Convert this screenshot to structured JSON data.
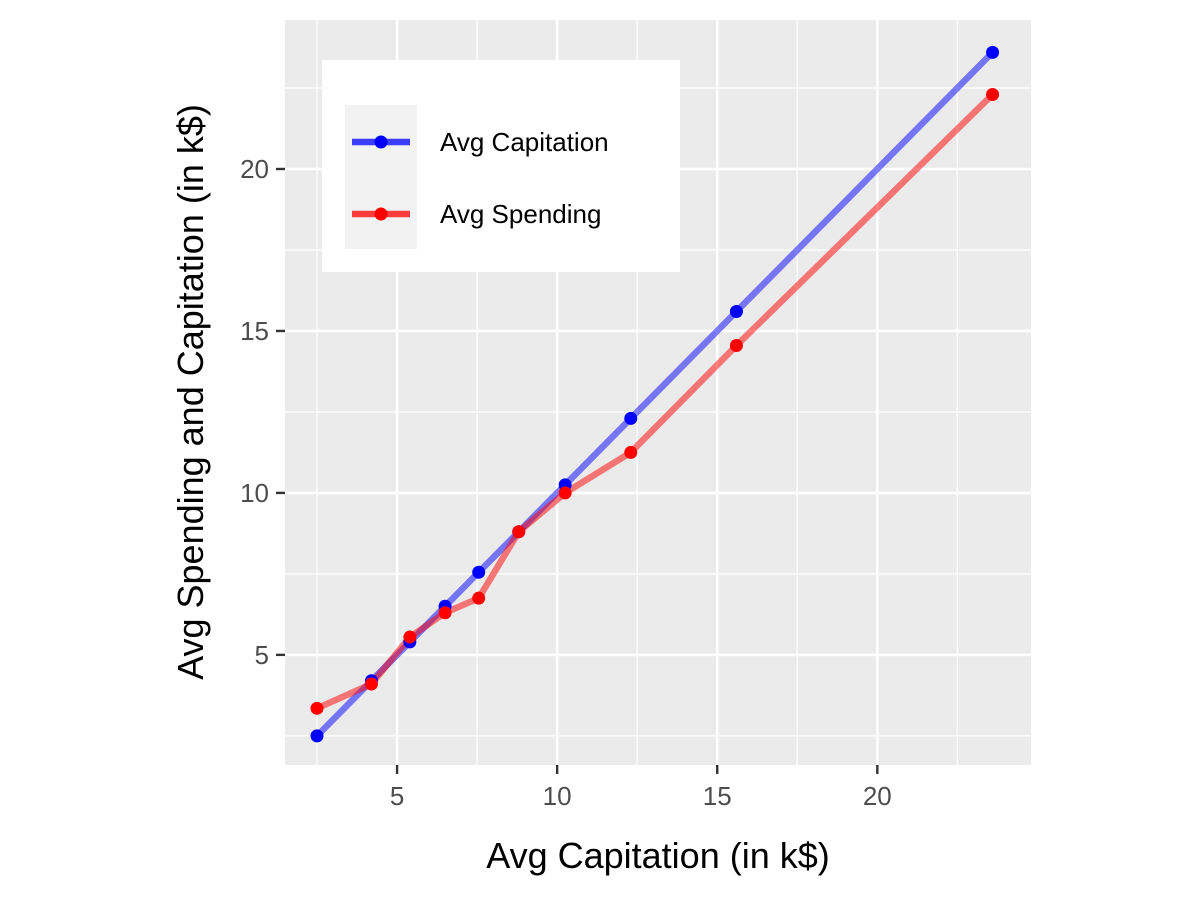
{
  "chart_data": {
    "type": "line",
    "xlabel": "Avg Capitation (in k$)",
    "ylabel": "Avg Spending and Capitation (in k$)",
    "xlim": [
      1.5,
      24.8
    ],
    "ylim": [
      1.6,
      24.6
    ],
    "xticks": [
      5,
      10,
      15,
      20
    ],
    "yticks": [
      5,
      10,
      15,
      20
    ],
    "grid": true,
    "legend_position": "top-left",
    "series": [
      {
        "name": "Avg Capitation",
        "color": "#0000ff",
        "x": [
          2.5,
          4.2,
          5.4,
          6.5,
          7.55,
          8.8,
          10.25,
          12.3,
          15.6,
          23.6
        ],
        "y": [
          2.5,
          4.2,
          5.4,
          6.5,
          7.55,
          8.8,
          10.25,
          12.3,
          15.6,
          23.6
        ]
      },
      {
        "name": "Avg Spending",
        "color": "#ff0000",
        "x": [
          2.5,
          4.2,
          5.4,
          6.5,
          7.55,
          8.8,
          10.25,
          12.3,
          15.6,
          23.6
        ],
        "y": [
          3.35,
          4.1,
          5.55,
          6.3,
          6.75,
          8.8,
          10.0,
          11.25,
          14.55,
          22.3
        ]
      }
    ]
  }
}
